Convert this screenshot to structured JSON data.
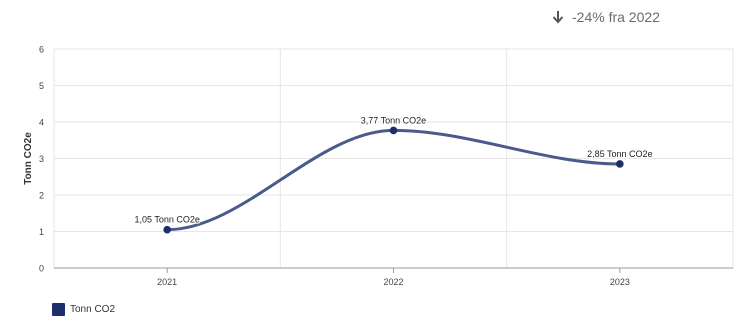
{
  "header": {
    "change_text": "-24% fra 2022",
    "change_icon": "arrow-down-icon"
  },
  "colors": {
    "series": "#4a5a8c",
    "marker": "#1f2e6b",
    "legend_swatch": "#1f2e6b",
    "grid": "#e6e6e6",
    "axis": "#999999"
  },
  "chart_data": {
    "type": "line",
    "title": "",
    "xlabel": "",
    "ylabel": "Tonn CO2e",
    "categories": [
      "2021",
      "2022",
      "2023"
    ],
    "ylim": [
      0,
      6
    ],
    "yticks": [
      0,
      1,
      2,
      3,
      4,
      5,
      6
    ],
    "grid": true,
    "smooth": true,
    "series": [
      {
        "name": "Tonn CO2",
        "values": [
          1.05,
          3.77,
          2.85
        ],
        "labels": [
          "1,05 Tonn CO2e",
          "3,77 Tonn CO2e",
          "2,85 Tonn CO2e"
        ]
      }
    ],
    "legend": {
      "position": "bottom-left"
    }
  }
}
